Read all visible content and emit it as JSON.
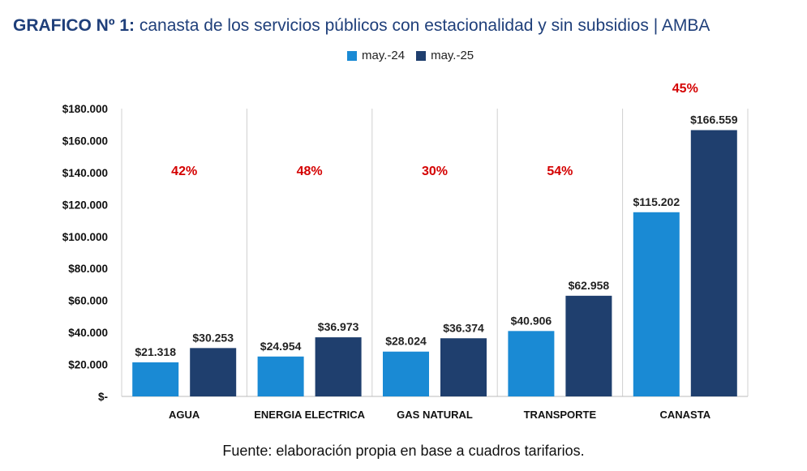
{
  "title": {
    "lead": "GRAFICO Nº 1:",
    "rest": " canasta de los servicios públicos con estacionalidad y sin subsidios | AMBA"
  },
  "source": "Fuente: elaboración propia en base a cuadros tarifarios.",
  "colors": {
    "may24": "#1a8ad4",
    "may25": "#1f3f6e",
    "pct": "#d40000",
    "grid": "#d0d0d0"
  },
  "chart_data": {
    "type": "bar",
    "title": "GRAFICO Nº 1: canasta de los servicios públicos con estacionalidad y sin subsidios | AMBA",
    "categories": [
      "AGUA",
      "ENERGIA ELECTRICA",
      "GAS NATURAL",
      "TRANSPORTE",
      "CANASTA"
    ],
    "series": [
      {
        "name": "may.-24",
        "values": [
          21318,
          24954,
          28024,
          40906,
          115202
        ],
        "labels": [
          "$21.318",
          "$24.954",
          "$28.024",
          "$40.906",
          "$115.202"
        ]
      },
      {
        "name": "may.-25",
        "values": [
          30253,
          36973,
          36374,
          62958,
          166559
        ],
        "labels": [
          "$30.253",
          "$36.973",
          "$36.374",
          "$62.958",
          "$166.559"
        ]
      }
    ],
    "pct_changes": [
      "42%",
      "48%",
      "30%",
      "54%",
      "45%"
    ],
    "ylim": [
      0,
      180000
    ],
    "yticks": [
      0,
      20000,
      40000,
      60000,
      80000,
      100000,
      120000,
      140000,
      160000,
      180000
    ],
    "ytick_labels": [
      "$-",
      "$20.000",
      "$40.000",
      "$60.000",
      "$80.000",
      "$100.000",
      "$120.000",
      "$140.000",
      "$160.000",
      "$180.000"
    ],
    "legend": "top",
    "xlabel": "",
    "ylabel": ""
  }
}
